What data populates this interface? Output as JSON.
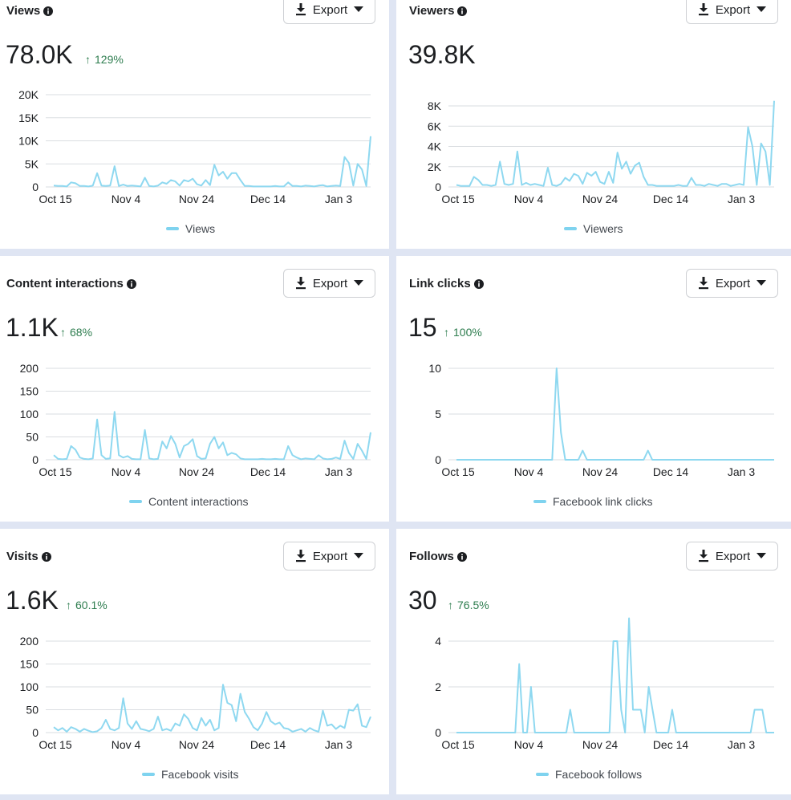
{
  "accent_color": "#8ed8f0",
  "positive_color": "#2e7d4f",
  "export_label": "Export",
  "cards": [
    {
      "title": "Views",
      "value": "78.0K",
      "delta": "129%",
      "legend": "Views",
      "chart_data": {
        "type": "line",
        "x_tick_labels": [
          "Oct 15",
          "Nov 4",
          "Nov 24",
          "Dec 14",
          "Jan 3"
        ],
        "y_tick_labels": [
          "0",
          "5K",
          "10K",
          "15K",
          "20K"
        ],
        "ylim": [
          0,
          20000
        ],
        "series": [
          {
            "name": "Views",
            "values": [
              300,
              200,
              200,
              100,
              1000,
              800,
              200,
              200,
              100,
              300,
              3000,
              300,
              200,
              300,
              4500,
              200,
              500,
              200,
              300,
              200,
              100,
              2000,
              200,
              100,
              300,
              1000,
              700,
              1500,
              1200,
              300,
              1500,
              1200,
              1800,
              600,
              300,
              1500,
              400,
              4800,
              2500,
              3300,
              1800,
              3000,
              3000,
              1500,
              200,
              200,
              100,
              100,
              100,
              100,
              100,
              200,
              100,
              100,
              1000,
              200,
              200,
              100,
              300,
              200,
              100,
              300,
              400,
              100,
              200,
              300,
              200,
              6500,
              5200,
              300,
              5000,
              3800,
              200,
              11000
            ]
          }
        ]
      }
    },
    {
      "title": "Viewers",
      "value": "39.8K",
      "legend": "Viewers",
      "chart_data": {
        "type": "line",
        "x_tick_labels": [
          "Oct 15",
          "Nov 4",
          "Nov 24",
          "Dec 14",
          "Jan 3"
        ],
        "y_tick_labels": [
          "0",
          "2K",
          "4K",
          "6K",
          "8K"
        ],
        "ylim": [
          0,
          8000
        ],
        "series": [
          {
            "name": "Viewers",
            "values": [
              200,
              100,
              100,
              100,
              1000,
              700,
              200,
              200,
              100,
              200,
              2500,
              300,
              200,
              300,
              3500,
              200,
              400,
              200,
              300,
              200,
              100,
              1900,
              200,
              100,
              300,
              900,
              600,
              1300,
              1100,
              300,
              1400,
              1100,
              1500,
              500,
              300,
              1500,
              400,
              3400,
              1800,
              2500,
              1300,
              2100,
              2400,
              1000,
              200,
              200,
              100,
              100,
              100,
              100,
              100,
              200,
              100,
              100,
              900,
              200,
              200,
              100,
              300,
              200,
              100,
              300,
              300,
              100,
              200,
              300,
              200,
              5900,
              4000,
              200,
              4300,
              3500,
              200,
              8500
            ]
          }
        ]
      }
    },
    {
      "title": "Content interactions",
      "value": "1.1K",
      "delta": "68%",
      "legend": "Content interactions",
      "chart_data": {
        "type": "line",
        "x_tick_labels": [
          "Oct 15",
          "Nov 4",
          "Nov 24",
          "Dec 14",
          "Jan 3"
        ],
        "y_tick_labels": [
          "0",
          "50",
          "100",
          "150",
          "200"
        ],
        "ylim": [
          0,
          200
        ],
        "series": [
          {
            "name": "Content interactions",
            "values": [
              10,
              2,
              1,
              2,
              30,
              22,
              5,
              2,
              1,
              3,
              88,
              10,
              2,
              3,
              105,
              10,
              5,
              8,
              2,
              1,
              1,
              65,
              3,
              1,
              2,
              40,
              25,
              52,
              35,
              5,
              30,
              35,
              45,
              8,
              2,
              3,
              35,
              50,
              25,
              38,
              10,
              15,
              12,
              3,
              1,
              1,
              1,
              1,
              2,
              1,
              1,
              2,
              1,
              1,
              30,
              10,
              5,
              1,
              3,
              2,
              1,
              10,
              3,
              1,
              2,
              5,
              2,
              42,
              15,
              2,
              35,
              20,
              2,
              60
            ]
          }
        ]
      }
    },
    {
      "title": "Link clicks",
      "value": "15",
      "delta": "100%",
      "legend": "Facebook link clicks",
      "chart_data": {
        "type": "line",
        "x_tick_labels": [
          "Oct 15",
          "Nov 4",
          "Nov 24",
          "Dec 14",
          "Jan 3"
        ],
        "y_tick_labels": [
          "0",
          "5",
          "10"
        ],
        "ylim": [
          0,
          10
        ],
        "series": [
          {
            "name": "Facebook link clicks",
            "values": [
              0,
              0,
              0,
              0,
              0,
              0,
              0,
              0,
              0,
              0,
              0,
              0,
              0,
              0,
              0,
              0,
              0,
              0,
              0,
              0,
              0,
              0,
              0,
              10,
              3,
              0,
              0,
              0,
              0,
              1,
              0,
              0,
              0,
              0,
              0,
              0,
              0,
              0,
              0,
              0,
              0,
              0,
              0,
              0,
              1,
              0,
              0,
              0,
              0,
              0,
              0,
              0,
              0,
              0,
              0,
              0,
              0,
              0,
              0,
              0,
              0,
              0,
              0,
              0,
              0,
              0,
              0,
              0,
              0,
              0,
              0,
              0,
              0,
              0
            ]
          }
        ]
      }
    },
    {
      "title": "Visits",
      "value": "1.6K",
      "delta": "60.1%",
      "legend": "Facebook visits",
      "chart_data": {
        "type": "line",
        "x_tick_labels": [
          "Oct 15",
          "Nov 4",
          "Nov 24",
          "Dec 14",
          "Jan 3"
        ],
        "y_tick_labels": [
          "0",
          "50",
          "100",
          "150",
          "200"
        ],
        "ylim": [
          0,
          200
        ],
        "series": [
          {
            "name": "Facebook visits",
            "values": [
              12,
              5,
              10,
              2,
              12,
              8,
              2,
              8,
              4,
              1,
              3,
              10,
              28,
              8,
              5,
              10,
              75,
              20,
              8,
              25,
              8,
              6,
              3,
              8,
              35,
              5,
              8,
              4,
              20,
              15,
              40,
              30,
              10,
              5,
              32,
              15,
              28,
              5,
              10,
              105,
              65,
              60,
              25,
              85,
              45,
              30,
              12,
              5,
              20,
              45,
              25,
              18,
              22,
              10,
              8,
              2,
              5,
              8,
              2,
              10,
              5,
              2,
              48,
              15,
              18,
              8,
              15,
              10,
              50,
              48,
              62,
              15,
              12,
              35
            ]
          }
        ]
      }
    },
    {
      "title": "Follows",
      "value": "30",
      "delta": "76.5%",
      "legend": "Facebook follows",
      "chart_data": {
        "type": "line",
        "x_tick_labels": [
          "Oct 15",
          "Nov 4",
          "Nov 24",
          "Dec 14",
          "Jan 3"
        ],
        "y_tick_labels": [
          "0",
          "2",
          "4"
        ],
        "ylim": [
          0,
          5
        ],
        "series": [
          {
            "name": "Facebook follows",
            "values": [
              0,
              0,
              0,
              0,
              0,
              0,
              0,
              0,
              0,
              0,
              0,
              0,
              0,
              0,
              0,
              0,
              3,
              0,
              0,
              2,
              0,
              0,
              0,
              0,
              0,
              0,
              0,
              0,
              0,
              1,
              0,
              0,
              0,
              0,
              0,
              0,
              0,
              0,
              0,
              0,
              4,
              4,
              1,
              0,
              5,
              1,
              1,
              1,
              0,
              2,
              1,
              0,
              0,
              0,
              0,
              1,
              0,
              0,
              0,
              0,
              0,
              0,
              0,
              0,
              0,
              0,
              0,
              0,
              0,
              0,
              0,
              0,
              0,
              0,
              0,
              0,
              1,
              1,
              1,
              0,
              0,
              0
            ]
          }
        ]
      }
    }
  ]
}
